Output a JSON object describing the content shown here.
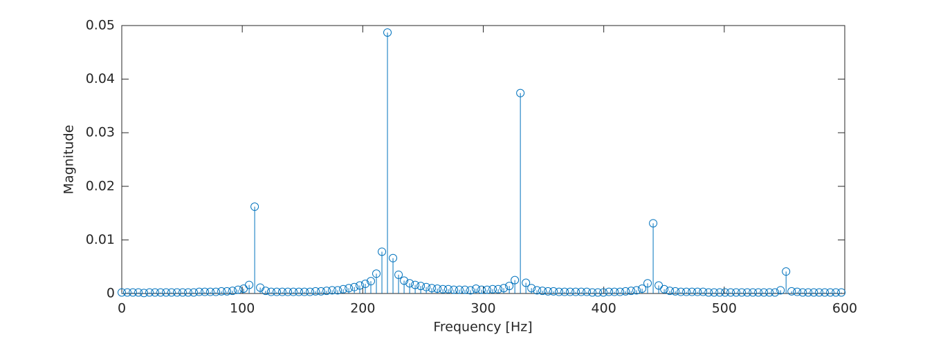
{
  "chart_data": {
    "type": "stem",
    "xlabel": "Frequency [Hz]",
    "ylabel": "Magnitude",
    "color": "#0072bd",
    "xlim": [
      0,
      600
    ],
    "xticks": [
      0,
      100,
      200,
      300,
      400,
      500,
      600
    ],
    "ylim": [
      0,
      0.05
    ],
    "yticks": [
      0,
      0.01,
      0.02,
      0.03,
      0.04,
      0.05
    ],
    "x": [
      0,
      4.6,
      9.2,
      13.8,
      18.4,
      23.0,
      27.6,
      32.2,
      36.8,
      41.3,
      45.9,
      50.5,
      55.1,
      59.7,
      64.3,
      68.9,
      73.5,
      78.1,
      82.7,
      87.3,
      91.9,
      96.5,
      101.1,
      105.7,
      110.3,
      114.9,
      119.4,
      124.0,
      128.6,
      133.2,
      137.8,
      142.4,
      147.0,
      151.6,
      156.2,
      160.8,
      165.4,
      170.0,
      174.6,
      179.2,
      183.8,
      188.4,
      193.0,
      197.5,
      202.1,
      206.7,
      211.3,
      215.9,
      220.5,
      225.1,
      229.7,
      234.3,
      238.9,
      243.5,
      248.1,
      252.7,
      257.3,
      261.9,
      266.5,
      271.0,
      275.6,
      280.2,
      284.8,
      289.4,
      294.0,
      298.6,
      303.2,
      307.8,
      312.4,
      317.0,
      321.6,
      326.2,
      330.8,
      335.4,
      340.0,
      344.6,
      349.1,
      353.7,
      358.3,
      362.9,
      367.5,
      372.1,
      376.7,
      381.3,
      385.9,
      390.5,
      395.1,
      399.7,
      404.3,
      408.9,
      413.5,
      418.1,
      422.7,
      427.2,
      431.8,
      436.4,
      441.0,
      445.6,
      450.2,
      454.8,
      459.4,
      464.0,
      468.6,
      473.2,
      477.8,
      482.4,
      487.0,
      491.6,
      496.2,
      500.7,
      505.3,
      509.9,
      514.5,
      519.1,
      523.7,
      528.3,
      532.9,
      537.5,
      542.1,
      546.7,
      551.3,
      555.9,
      560.5,
      565.1,
      569.7,
      574.3,
      578.8,
      583.4,
      588.0,
      592.6,
      597.2
    ],
    "values": [
      0.0002,
      0.0002,
      0.0002,
      0.0002,
      0.0001,
      0.0002,
      0.0002,
      0.0002,
      0.0002,
      0.0002,
      0.0002,
      0.0002,
      0.0002,
      0.0002,
      0.0003,
      0.0003,
      0.0003,
      0.0003,
      0.0004,
      0.0004,
      0.0005,
      0.0007,
      0.0009,
      0.0016,
      0.0162,
      0.0011,
      0.0005,
      0.0003,
      0.0003,
      0.0003,
      0.0003,
      0.0003,
      0.0003,
      0.0003,
      0.0003,
      0.0004,
      0.0004,
      0.0005,
      0.0006,
      0.0006,
      0.0008,
      0.001,
      0.0012,
      0.0015,
      0.0018,
      0.0023,
      0.0037,
      0.0078,
      0.0487,
      0.0066,
      0.0035,
      0.0024,
      0.0019,
      0.0016,
      0.0014,
      0.0012,
      0.001,
      0.0009,
      0.0008,
      0.0008,
      0.0007,
      0.0007,
      0.0007,
      0.0006,
      0.0009,
      0.0007,
      0.0007,
      0.0008,
      0.0008,
      0.001,
      0.0014,
      0.0025,
      0.0374,
      0.002,
      0.001,
      0.0006,
      0.0005,
      0.0004,
      0.0004,
      0.0003,
      0.0003,
      0.0003,
      0.0003,
      0.0003,
      0.0003,
      0.0002,
      0.0002,
      0.0002,
      0.0003,
      0.0003,
      0.0003,
      0.0004,
      0.0005,
      0.0006,
      0.0009,
      0.0019,
      0.0131,
      0.0015,
      0.0008,
      0.0005,
      0.0004,
      0.0003,
      0.0003,
      0.0003,
      0.0003,
      0.0003,
      0.0002,
      0.0002,
      0.0002,
      0.0002,
      0.0002,
      0.0002,
      0.0002,
      0.0002,
      0.0002,
      0.0002,
      0.0002,
      0.0002,
      0.0002,
      0.0006,
      0.0041,
      0.0004,
      0.0003,
      0.0002,
      0.0002,
      0.0002,
      0.0002,
      0.0002,
      0.0002,
      0.0002,
      0.0002
    ]
  }
}
